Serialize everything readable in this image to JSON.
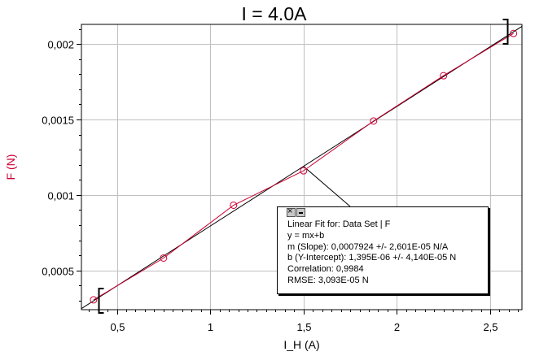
{
  "chart_data": {
    "type": "scatter",
    "title": "I = 4.0A",
    "xlabel": "I_H (A)",
    "ylabel": "F (N)",
    "xlim": [
      0.31,
      2.67
    ],
    "ylim": [
      0.00024,
      0.00213
    ],
    "grid": true,
    "x_ticks": [
      {
        "value": 0.5,
        "label": "0,5"
      },
      {
        "value": 1,
        "label": "1"
      },
      {
        "value": 1.5,
        "label": "1,5"
      },
      {
        "value": 2,
        "label": "2"
      },
      {
        "value": 2.5,
        "label": "2,5"
      }
    ],
    "y_ticks": [
      {
        "value": 0.0005,
        "label": "0,0005"
      },
      {
        "value": 0.001,
        "label": "0,001"
      },
      {
        "value": 0.0015,
        "label": "0,0015"
      },
      {
        "value": 0.002,
        "label": "0,002"
      }
    ],
    "series": [
      {
        "x": [
          0.375,
          0.75,
          1.125,
          1.5,
          1.875,
          2.25,
          2.625
        ],
        "y": [
          0.000305,
          0.000582,
          0.000932,
          0.00116,
          0.00149,
          0.00179,
          0.00207
        ],
        "marker": "circle",
        "connected": true,
        "color": "#cc0033"
      }
    ],
    "fit": {
      "type": "linear",
      "slope": 0.0007924,
      "intercept": 1.395e-06,
      "range": [
        0.31,
        2.67
      ],
      "color": "#000000"
    },
    "fit_range_brackets": [
      0.375,
      2.625
    ],
    "annotation": {
      "title": "Linear Fit for: Data Set | F",
      "equation": "y = mx+b",
      "slope": "m (Slope): 0,0007924 +/- 2,601E-05 N/A",
      "intercept": "b (Y-Intercept): 1,395E-06 +/- 4,140E-05 N",
      "correlation": "Correlation: 0,9984",
      "rmse": "RMSE: 3,093E-05 N"
    }
  },
  "colors": {
    "data": "#cc0033",
    "fit": "#000000",
    "grid": "#c0c0c0",
    "ylabel": "#cc0033"
  },
  "fitbox_icons": [
    "close-icon",
    "minimize-icon"
  ]
}
